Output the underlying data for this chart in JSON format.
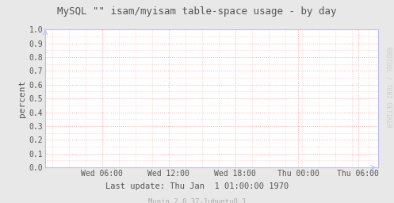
{
  "title": "MySQL \"\" isam/myisam table-space usage - by day",
  "ylabel": "percent",
  "ylim": [
    0.0,
    1.0
  ],
  "yticks": [
    0.0,
    0.1,
    0.2,
    0.3,
    0.4,
    0.5,
    0.6,
    0.7,
    0.8,
    0.9,
    1.0
  ],
  "xtick_labels": [
    "Wed 06:00",
    "Wed 12:00",
    "Wed 18:00",
    "Thu 00:00",
    "Thu 06:00"
  ],
  "xtick_positions": [
    0.17,
    0.37,
    0.57,
    0.76,
    0.94
  ],
  "footer_text": "Last update: Thu Jan  1 01:00:00 1970",
  "munin_text": "Munin 2.0.37-1ubuntu0.1",
  "rrdtool_text": "RRDTOOL / TOBI OETIKER",
  "bg_color": "#e8e8e8",
  "plot_bg_color": "#ffffff",
  "grid_color": "#ffaaaa",
  "border_color": "#bbbbff",
  "title_color": "#555555",
  "ylabel_color": "#555555",
  "tick_color": "#555555",
  "footer_color": "#555555",
  "munin_color": "#aaaaaa",
  "rrdtool_color": "#cccccc",
  "title_fontsize": 9.0,
  "tick_fontsize": 7.0,
  "ylabel_fontsize": 8.0,
  "footer_fontsize": 7.5,
  "munin_fontsize": 6.5,
  "rrdtool_fontsize": 5.5
}
